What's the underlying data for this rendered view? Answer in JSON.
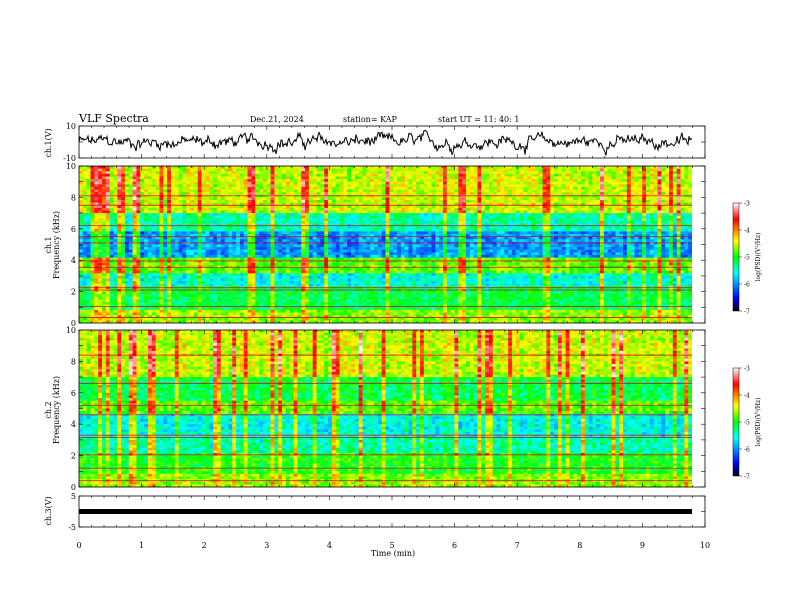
{
  "header": {
    "title": "VLF Spectra",
    "date": "Dec.21, 2024",
    "station": "station= KAP",
    "start": "start  UT  =   11: 40: 1"
  },
  "chart_data": [
    {
      "id": "ch1-voltage",
      "type": "line",
      "ylabel": "ch.1(V)",
      "ylim": [
        -10,
        10
      ],
      "yticks": [
        "10",
        "-10"
      ],
      "xlim": [
        0,
        9.8
      ],
      "color": "#000000"
    },
    {
      "id": "ch1-spectrogram",
      "type": "heatmap",
      "ylabel": "Frequency (kHz)",
      "channel_label": "ch.1",
      "ylim": [
        0,
        10
      ],
      "yticks": [
        "0",
        "2",
        "4",
        "6",
        "8",
        "10"
      ],
      "xlim": [
        0,
        9.8
      ],
      "colorbar": {
        "label": "log(PSD)(V²/Hz)",
        "range": [
          -7,
          -3
        ],
        "ticks": [
          "-3",
          "-4",
          "-5",
          "-6",
          "-7"
        ]
      }
    },
    {
      "id": "ch2-spectrogram",
      "type": "heatmap",
      "ylabel": "Frequency (kHz)",
      "channel_label": "ch.2",
      "ylim": [
        0,
        10
      ],
      "yticks": [
        "0",
        "2",
        "4",
        "6",
        "8",
        "10"
      ],
      "xlim": [
        0,
        9.8
      ],
      "colorbar": {
        "label": "log(PSD)(V²/Hz)",
        "range": [
          -7,
          -3
        ],
        "ticks": [
          "-3",
          "-4",
          "-5",
          "-6",
          "-7"
        ]
      }
    },
    {
      "id": "ch3-voltage",
      "type": "line",
      "ylabel": "ch.3(V)",
      "ylim": [
        -5,
        5
      ],
      "yticks": [
        "5",
        "-5"
      ],
      "xlim": [
        0,
        9.8
      ],
      "constant_value": 0,
      "xlabel": "Time (min)",
      "xticks": [
        "0",
        "1",
        "2",
        "3",
        "4",
        "5",
        "6",
        "7",
        "8",
        "9",
        "10"
      ],
      "color": "#000000"
    }
  ]
}
